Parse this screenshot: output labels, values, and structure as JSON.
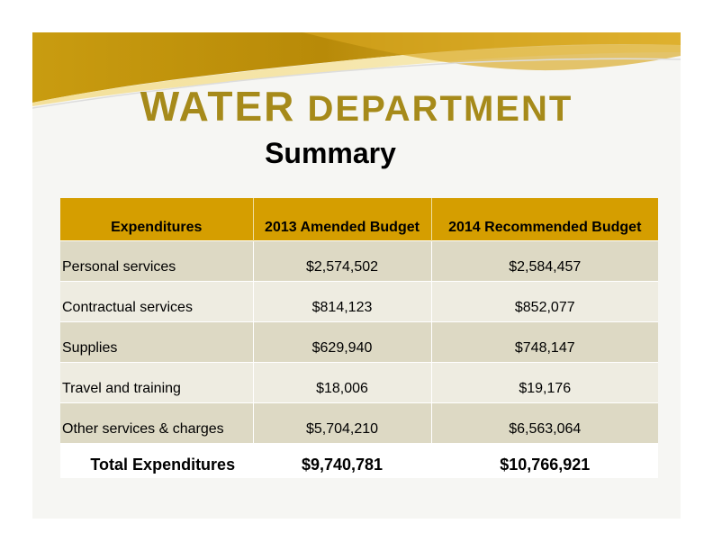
{
  "title": {
    "word1": "WATER",
    "word2": "DEPARTMENT"
  },
  "subtitle": "Summary",
  "table": {
    "headers": [
      "Expenditures",
      "2013 Amended Budget",
      "2014 Recommended Budget"
    ],
    "rows": [
      {
        "label": "Personal services",
        "amended_2013": "$2,574,502",
        "recommended_2014": "$2,584,457"
      },
      {
        "label": "Contractual services",
        "amended_2013": "$814,123",
        "recommended_2014": "$852,077"
      },
      {
        "label": "Supplies",
        "amended_2013": "$629,940",
        "recommended_2014": "$748,147"
      },
      {
        "label": "Travel and training",
        "amended_2013": "$18,006",
        "recommended_2014": "$19,176"
      },
      {
        "label": "Other services & charges",
        "amended_2013": "$5,704,210",
        "recommended_2014": "$6,563,064"
      }
    ],
    "total": {
      "label": "Total Expenditures",
      "amended_2013": "$9,740,781",
      "recommended_2014": "$10,766,921"
    }
  },
  "colors": {
    "title_gold": "#a68a1a",
    "header_gold": "#d59e00",
    "row_dark": "#ddd9c4",
    "row_light": "#eeece1"
  }
}
